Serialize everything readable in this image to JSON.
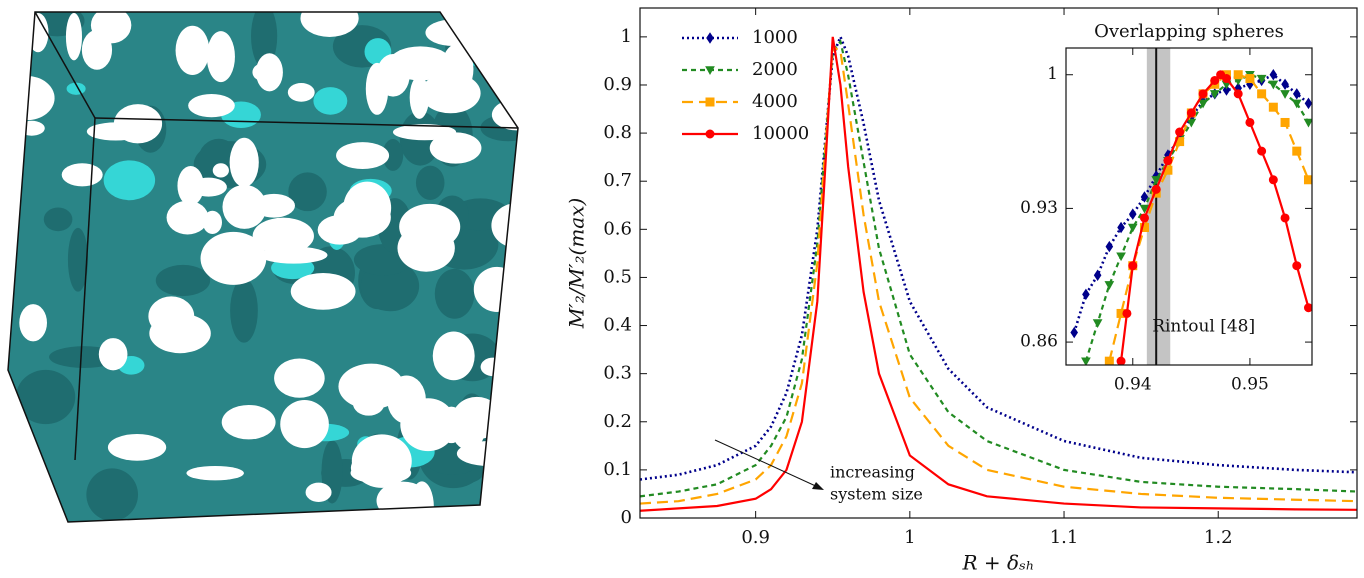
{
  "chart_data": [
    {
      "type": "line",
      "xlabel": "R + δₛₕ",
      "ylabel": "M′₂/M′₂(max)",
      "xlim": [
        0.825,
        1.29
      ],
      "ylim": [
        0,
        1.06
      ],
      "xticks": [
        0.9,
        1,
        1.1,
        1.2
      ],
      "yticks": [
        0,
        0.1,
        0.2,
        0.3,
        0.4,
        0.5,
        0.6,
        0.7,
        0.8,
        0.9,
        1
      ],
      "legend": "upper left",
      "markers": false,
      "annotation": [
        "increasing",
        "system size"
      ],
      "x": [
        0.825,
        0.85,
        0.875,
        0.9,
        0.91,
        0.92,
        0.93,
        0.94,
        0.945,
        0.95,
        0.955,
        0.96,
        0.97,
        0.98,
        1.0,
        1.025,
        1.05,
        1.1,
        1.15,
        1.2,
        1.25,
        1.29
      ],
      "series": [
        {
          "name": "1000",
          "color": "#00008b",
          "dash": "dotted",
          "marker": "diamond",
          "values": [
            0.08,
            0.09,
            0.11,
            0.15,
            0.19,
            0.26,
            0.38,
            0.6,
            0.78,
            0.96,
            1.0,
            0.96,
            0.82,
            0.66,
            0.45,
            0.31,
            0.23,
            0.16,
            0.125,
            0.11,
            0.1,
            0.095
          ]
        },
        {
          "name": "2000",
          "color": "#228b22",
          "dash": "short-dashed",
          "marker": "triangle",
          "values": [
            0.045,
            0.055,
            0.07,
            0.11,
            0.15,
            0.21,
            0.33,
            0.57,
            0.77,
            0.97,
            0.99,
            0.92,
            0.74,
            0.56,
            0.34,
            0.22,
            0.16,
            0.1,
            0.075,
            0.065,
            0.06,
            0.055
          ]
        },
        {
          "name": "4000",
          "color": "#ffa500",
          "dash": "dashed",
          "marker": "square",
          "values": [
            0.03,
            0.035,
            0.05,
            0.08,
            0.11,
            0.17,
            0.28,
            0.53,
            0.76,
            0.98,
            0.97,
            0.86,
            0.63,
            0.45,
            0.25,
            0.15,
            0.1,
            0.065,
            0.05,
            0.042,
            0.038,
            0.035
          ]
        },
        {
          "name": "10000",
          "color": "#ff0000",
          "dash": "solid",
          "marker": "circle",
          "values": [
            0.015,
            0.02,
            0.025,
            0.04,
            0.06,
            0.1,
            0.2,
            0.45,
            0.72,
            1.0,
            0.9,
            0.73,
            0.47,
            0.3,
            0.13,
            0.07,
            0.045,
            0.03,
            0.022,
            0.02,
            0.018,
            0.017
          ]
        }
      ]
    },
    {
      "type": "line",
      "title": "Overlapping spheres",
      "markers": true,
      "xlim": [
        0.9343,
        0.9553
      ],
      "ylim": [
        0.848,
        1.014
      ],
      "xticks": [
        0.94,
        0.95
      ],
      "yticks": [
        0.86,
        0.93,
        1
      ],
      "reference": {
        "x": 0.942,
        "band": [
          0.9412,
          0.9432
        ],
        "label": "Rintoul [48]"
      },
      "series": [
        {
          "color": "#00008b",
          "dash": "dotted",
          "marker": "diamond",
          "x": [
            0.935,
            0.936,
            0.937,
            0.938,
            0.939,
            0.94,
            0.941,
            0.942,
            0.943,
            0.944,
            0.945,
            0.946,
            0.947,
            0.948,
            0.949,
            0.95,
            0.951,
            0.952,
            0.953,
            0.954,
            0.955
          ],
          "values": [
            0.865,
            0.885,
            0.895,
            0.91,
            0.92,
            0.927,
            0.936,
            0.947,
            0.958,
            0.967,
            0.978,
            0.986,
            0.99,
            0.992,
            0.993,
            0.995,
            0.997,
            1.0,
            0.995,
            0.99,
            0.985
          ]
        },
        {
          "color": "#228b22",
          "dash": "short-dashed",
          "marker": "triangle",
          "x": [
            0.936,
            0.937,
            0.938,
            0.939,
            0.94,
            0.941,
            0.942,
            0.943,
            0.944,
            0.945,
            0.946,
            0.947,
            0.948,
            0.949,
            0.95,
            0.951,
            0.952,
            0.953,
            0.954,
            0.955
          ],
          "values": [
            0.85,
            0.87,
            0.89,
            0.905,
            0.92,
            0.93,
            0.945,
            0.955,
            0.965,
            0.975,
            0.985,
            0.99,
            0.995,
            0.997,
            1.0,
            0.998,
            0.995,
            0.99,
            0.985,
            0.975
          ]
        },
        {
          "color": "#ffa500",
          "dash": "dashed",
          "marker": "square",
          "x": [
            0.938,
            0.939,
            0.94,
            0.941,
            0.942,
            0.943,
            0.944,
            0.945,
            0.946,
            0.947,
            0.948,
            0.949,
            0.95,
            0.951,
            0.952,
            0.953,
            0.954,
            0.955
          ],
          "values": [
            0.85,
            0.875,
            0.9,
            0.92,
            0.938,
            0.95,
            0.965,
            0.98,
            0.99,
            0.995,
            1.0,
            1.0,
            0.998,
            0.99,
            0.983,
            0.975,
            0.96,
            0.945
          ]
        },
        {
          "color": "#ff0000",
          "dash": "solid",
          "marker": "circle",
          "x": [
            0.939,
            0.9395,
            0.94,
            0.941,
            0.942,
            0.943,
            0.944,
            0.945,
            0.946,
            0.947,
            0.9475,
            0.948,
            0.949,
            0.95,
            0.951,
            0.952,
            0.953,
            0.954,
            0.955
          ],
          "values": [
            0.85,
            0.875,
            0.9,
            0.925,
            0.94,
            0.955,
            0.97,
            0.98,
            0.99,
            0.997,
            1.0,
            0.998,
            0.99,
            0.975,
            0.96,
            0.945,
            0.925,
            0.9,
            0.878
          ]
        }
      ]
    }
  ]
}
